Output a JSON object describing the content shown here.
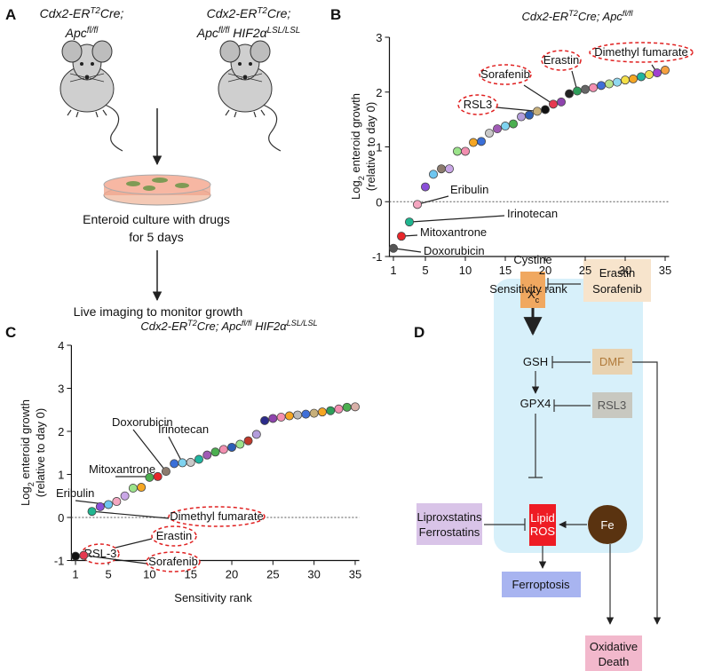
{
  "panel_labels": [
    "A",
    "B",
    "C",
    "D"
  ],
  "panel_a": {
    "mouse_1": [
      [
        {
          "text": "Cdx2-ER"
        },
        {
          "text": "T2",
          "style": "sup"
        },
        {
          "text": "Cre;"
        }
      ],
      [
        {
          "text": "Apc"
        },
        {
          "text": "fl/fl",
          "style": "sup"
        }
      ]
    ],
    "mouse_2": [
      [
        {
          "text": "Cdx2-ER"
        },
        {
          "text": "T2",
          "style": "sup"
        },
        {
          "text": "Cre;"
        }
      ],
      [
        {
          "text": "Apc"
        },
        {
          "text": "fl/fl",
          "style": "sup"
        },
        {
          "text": " HIF2α"
        },
        {
          "text": "LSL/LSL",
          "style": "sup"
        }
      ]
    ],
    "culture": [
      "Enteroid culture with drugs",
      "for 5 days"
    ],
    "imaging": "Live imaging to monitor growth"
  },
  "chart_data": [
    {
      "type": "scatter",
      "title": [
        {
          "text": "Cdx2-ER"
        },
        {
          "text": "T2",
          "style": "sup"
        },
        {
          "text": "Cre; Apc"
        },
        {
          "text": "fl/fl",
          "style": "sup"
        }
      ],
      "xlabel": "Sensitivity rank",
      "ylabel": [
        [
          {
            "text": "Log"
          },
          {
            "text": "2",
            "style": "sub"
          },
          {
            "text": " enteroid growth"
          }
        ],
        [
          {
            "text": "(relative to day 0)"
          }
        ]
      ],
      "x": [
        1,
        2,
        3,
        4,
        5,
        6,
        7,
        8,
        9,
        10,
        11,
        12,
        13,
        14,
        15,
        16,
        17,
        18,
        19,
        20,
        21,
        22,
        23,
        24,
        25,
        26,
        27,
        28,
        29,
        30,
        31,
        32,
        33,
        34,
        35
      ],
      "values": [
        -0.85,
        -0.63,
        -0.37,
        -0.05,
        0.27,
        0.5,
        0.6,
        0.6,
        0.92,
        0.92,
        1.08,
        1.1,
        1.25,
        1.33,
        1.38,
        1.42,
        1.55,
        1.58,
        1.65,
        1.68,
        1.78,
        1.82,
        1.97,
        2.02,
        2.05,
        2.08,
        2.12,
        2.15,
        2.18,
        2.22,
        2.24,
        2.28,
        2.32,
        2.35,
        2.4
      ],
      "colors": [
        "#555555",
        "#e8262a",
        "#1fb58f",
        "#f4a6c0",
        "#8a4fd8",
        "#6ec6f0",
        "#8c7b6e",
        "#c9a6e6",
        "#9be38a",
        "#f28fb0",
        "#f5a623",
        "#3a6fd8",
        "#c8c8c8",
        "#a05bb5",
        "#7fd3f0",
        "#4caf50",
        "#b39ddb",
        "#2c5fb8",
        "#c8b07a",
        "#111111",
        "#e63950",
        "#8e44ad",
        "#222222",
        "#2e9e5a",
        "#666666",
        "#f48fb1",
        "#3f6fd8",
        "#b9e38a",
        "#8fd8f0",
        "#f5e048",
        "#f5a623",
        "#1fb5a0",
        "#f0e050",
        "#a040d0",
        "#f5a040"
      ],
      "xlim": [
        0.5,
        35.5
      ],
      "ylim": [
        -1,
        3
      ],
      "xticks": [
        1,
        5,
        10,
        15,
        20,
        25,
        30,
        35
      ],
      "yticks": [
        -1,
        0,
        1,
        2,
        3
      ],
      "reference_line": 0,
      "annotations": [
        {
          "text": "Eribulin",
          "circled": false
        },
        {
          "text": "Irinotecan",
          "circled": false
        },
        {
          "text": "Mitoxantrone",
          "circled": false
        },
        {
          "text": "Doxorubicin",
          "circled": false
        },
        {
          "text": "RSL3",
          "circled": true
        },
        {
          "text": "Sorafenib",
          "circled": true
        },
        {
          "text": "Erastin",
          "circled": true
        },
        {
          "text": "Dimethyl fumarate",
          "circled": true
        }
      ]
    },
    {
      "type": "scatter",
      "title": [
        {
          "text": "Cdx2-ER"
        },
        {
          "text": "T2",
          "style": "sup"
        },
        {
          "text": "Cre; Apc"
        },
        {
          "text": "fl/fl",
          "style": "sup"
        },
        {
          "text": " HIF2α"
        },
        {
          "text": "LSL/LSL",
          "style": "sup"
        }
      ],
      "xlabel": "Sensitivity rank",
      "ylabel": [
        [
          {
            "text": "Log"
          },
          {
            "text": "2",
            "style": "sub"
          },
          {
            "text": " enteroid growth"
          }
        ],
        [
          {
            "text": "(relative to day 0)"
          }
        ]
      ],
      "x": [
        1,
        2,
        3,
        4,
        5,
        6,
        7,
        8,
        9,
        10,
        11,
        12,
        13,
        14,
        15,
        16,
        17,
        18,
        19,
        20,
        21,
        22,
        23,
        24,
        25,
        26,
        27,
        28,
        29,
        30,
        31,
        32,
        33,
        34,
        35
      ],
      "values": [
        -0.9,
        -0.88,
        0.14,
        0.25,
        0.3,
        0.37,
        0.5,
        0.68,
        0.7,
        0.93,
        0.95,
        1.07,
        1.25,
        1.27,
        1.28,
        1.35,
        1.45,
        1.52,
        1.58,
        1.63,
        1.7,
        1.78,
        1.93,
        2.25,
        2.3,
        2.33,
        2.36,
        2.38,
        2.4,
        2.42,
        2.45,
        2.48,
        2.52,
        2.56,
        2.57
      ],
      "colors": [
        "#111111",
        "#e63950",
        "#1fb58f",
        "#8a4fd8",
        "#6ec6f0",
        "#f4a6c0",
        "#c9a6e6",
        "#9be38a",
        "#f5a623",
        "#4caf50",
        "#e8262a",
        "#8c7b6e",
        "#3a6fd8",
        "#7fd3f0",
        "#c8c8c8",
        "#1fb5a0",
        "#a05bb5",
        "#4caf50",
        "#f28fb0",
        "#2c5fb8",
        "#9be38a",
        "#c0392b",
        "#b39ddb",
        "#2c2c8a",
        "#8e44ad",
        "#f48fb1",
        "#f5a623",
        "#bbbbbb",
        "#3f6fd8",
        "#c8b07a",
        "#f5a623",
        "#2e9e5a",
        "#f48fb1",
        "#4caf50",
        "#d8b0a8"
      ],
      "xlim": [
        0.5,
        35.5
      ],
      "ylim": [
        -1,
        4
      ],
      "xticks": [
        1,
        5,
        10,
        15,
        20,
        25,
        30,
        35
      ],
      "yticks": [
        -1,
        0,
        1,
        2,
        3,
        4
      ],
      "reference_line": 0,
      "annotations": [
        {
          "text": "Doxorubicin",
          "circled": false
        },
        {
          "text": "Irinotecan",
          "circled": false
        },
        {
          "text": "Mitoxantrone",
          "circled": false
        },
        {
          "text": "Eribulin",
          "circled": false
        },
        {
          "text": "Dimethyl fumarate",
          "circled": true
        },
        {
          "text": "Erastin",
          "circled": true
        },
        {
          "text": "RSL-3",
          "circled": true
        },
        {
          "text": "Sorafenib",
          "circled": true
        }
      ]
    }
  ],
  "panel_d": {
    "cystine": "Cystine",
    "transporter": [
      {
        "text": "X"
      },
      {
        "text": "c",
        "style": "sub"
      },
      {
        "text": "-",
        "style": "sup"
      }
    ],
    "inhibitors_1": [
      "Erastin",
      "Sorafenib"
    ],
    "gsh": "GSH",
    "dmf": "DMF",
    "gpx4": "GPX4",
    "rsl3": "RSL3",
    "lipid_ros": [
      "Lipid",
      "ROS"
    ],
    "fe": "Fe",
    "inhibitors_2": [
      "Liproxstatins",
      "Ferrostatins"
    ],
    "ferroptosis": "Ferroptosis",
    "oxidative_death": [
      "Oxidative",
      "Death"
    ]
  }
}
